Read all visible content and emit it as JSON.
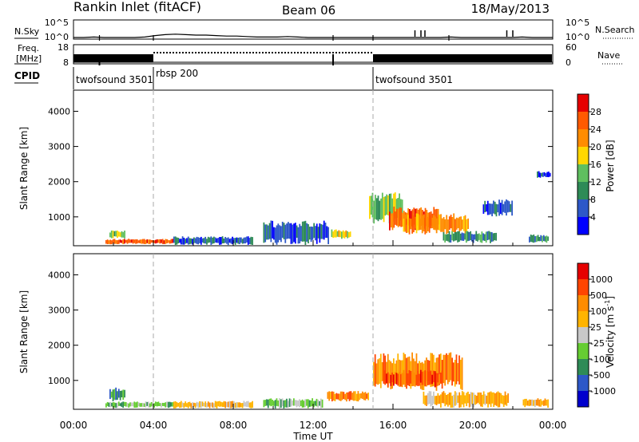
{
  "header": {
    "title": "Rankin Inlet (fitACF)",
    "beam": "Beam 06",
    "date": "18/May/2013"
  },
  "chart_data": [
    {
      "type": "line",
      "title": "",
      "ylabel": "N.Sky",
      "y_ticks": [
        "10^5",
        "10^0"
      ],
      "right_label": "N.Search",
      "right_ticks": [
        "10^5",
        "10^0"
      ],
      "series": [
        {
          "values": [
            1.0,
            1.0,
            1.1,
            1.0,
            1.0,
            1.0,
            1.0,
            1.1,
            1.4,
            1.6,
            1.7,
            1.6,
            1.5,
            1.5,
            1.4,
            1.3,
            1.3,
            1.2,
            1.1,
            1.1,
            1.1,
            1.2,
            1.1,
            1.0,
            1.0,
            1.0,
            1.0,
            1.0,
            1.0,
            1.0,
            1.0,
            1.0,
            1.0,
            1.0,
            1.0,
            1.0,
            1.0,
            1.1,
            1.0,
            1.0,
            1.0,
            1.0,
            1.0,
            1.0,
            1.1,
            1.0,
            1.0,
            1.0
          ]
        }
      ]
    },
    {
      "type": "line",
      "title": "",
      "ylabel_line1": "Freq.",
      "ylabel_line2": "[MHz]",
      "y_ticks": [
        "18",
        "8"
      ],
      "right_label": "Nave",
      "right_ticks": [
        "60",
        "0"
      ],
      "segments_hours": [
        [
          0,
          4.0
        ],
        [
          4.0,
          15.0
        ],
        [
          15.0,
          24
        ]
      ]
    },
    {
      "type": "table",
      "label": "CPID",
      "programs": [
        {
          "start_hour": 0,
          "name": "twofsound",
          "cpid": "3501"
        },
        {
          "start_hour": 4.0,
          "name": "rbsp",
          "cpid": "200"
        },
        {
          "start_hour": 15.0,
          "name": "twofsound",
          "cpid": "3501"
        }
      ]
    },
    {
      "type": "heatmap",
      "ylabel": "Slant Range [km]",
      "xlim_hours": [
        0,
        24
      ],
      "ylim_km": [
        180,
        4600
      ],
      "y_ticks": [
        1000,
        2000,
        3000,
        4000
      ],
      "colorbar_label": "Power [dB]",
      "colorbar_ticks": [
        "4",
        "8",
        "12",
        "16",
        "20",
        "24",
        "28"
      ],
      "colors": [
        "#0000ff",
        "#2d58c8",
        "#2e8b57",
        "#5fbf5f",
        "#ffd700",
        "#ff8c00",
        "#ff5a00",
        "#e60000"
      ],
      "regions": [
        {
          "t0": 1.6,
          "t1": 5.0,
          "r0": 220,
          "r1": 380,
          "level": 6
        },
        {
          "t0": 1.8,
          "t1": 2.6,
          "r0": 380,
          "r1": 620,
          "level": 3
        },
        {
          "t0": 5.0,
          "t1": 9.0,
          "r0": 200,
          "r1": 450,
          "level": 1
        },
        {
          "t0": 9.5,
          "t1": 12.8,
          "r0": 200,
          "r1": 900,
          "level": 1
        },
        {
          "t0": 12.9,
          "t1": 13.9,
          "r0": 350,
          "r1": 650,
          "level": 4
        },
        {
          "t0": 14.8,
          "t1": 16.5,
          "r0": 800,
          "r1": 1700,
          "level": 3
        },
        {
          "t0": 15.8,
          "t1": 18.3,
          "r0": 600,
          "r1": 1300,
          "level": 6
        },
        {
          "t0": 16.5,
          "t1": 19.8,
          "r0": 500,
          "r1": 1100,
          "level": 5
        },
        {
          "t0": 18.5,
          "t1": 21.2,
          "r0": 250,
          "r1": 600,
          "level": 2
        },
        {
          "t0": 20.5,
          "t1": 22.0,
          "r0": 1000,
          "r1": 1500,
          "level": 1
        },
        {
          "t0": 22.8,
          "t1": 23.8,
          "r0": 250,
          "r1": 500,
          "level": 2
        },
        {
          "t0": 23.2,
          "t1": 23.9,
          "r0": 2100,
          "r1": 2300,
          "level": 1
        }
      ]
    },
    {
      "type": "heatmap",
      "ylabel": "Slant Range [km]",
      "xlabel": "Time UT",
      "xlim_hours": [
        0,
        24
      ],
      "ylim_km": [
        180,
        4600
      ],
      "y_ticks": [
        1000,
        2000,
        3000,
        4000
      ],
      "x_ticks": [
        "00:00",
        "04:00",
        "08:00",
        "12:00",
        "16:00",
        "20:00",
        "00:00"
      ],
      "colorbar_label": "Velocity [m s^-1]",
      "colorbar_ticks": [
        "1000",
        "500",
        "100",
        "25",
        "-25",
        "-100",
        "-500",
        "-1000"
      ],
      "colors": [
        "#0000cd",
        "#2d58c8",
        "#2e8b57",
        "#66cd32",
        "#c8c8c8",
        "#ffb400",
        "#ff8c00",
        "#ff4500",
        "#e60000"
      ],
      "regions": [
        {
          "t0": 1.6,
          "t1": 5.0,
          "r0": 220,
          "r1": 400,
          "level": 3
        },
        {
          "t0": 1.8,
          "t1": 2.6,
          "r0": 400,
          "r1": 800,
          "level": 2
        },
        {
          "t0": 5.0,
          "t1": 9.0,
          "r0": 200,
          "r1": 420,
          "level": 5
        },
        {
          "t0": 9.5,
          "t1": 12.5,
          "r0": 200,
          "r1": 500,
          "level": 3
        },
        {
          "t0": 12.7,
          "t1": 14.8,
          "r0": 400,
          "r1": 700,
          "level": 6
        },
        {
          "t0": 15.0,
          "t1": 19.5,
          "r0": 700,
          "r1": 1800,
          "level": 6
        },
        {
          "t0": 15.5,
          "t1": 18.5,
          "r0": 800,
          "r1": 1300,
          "level": 7
        },
        {
          "t0": 17.5,
          "t1": 21.8,
          "r0": 220,
          "r1": 700,
          "level": 5
        },
        {
          "t0": 22.5,
          "t1": 23.8,
          "r0": 220,
          "r1": 500,
          "level": 5
        }
      ]
    }
  ]
}
